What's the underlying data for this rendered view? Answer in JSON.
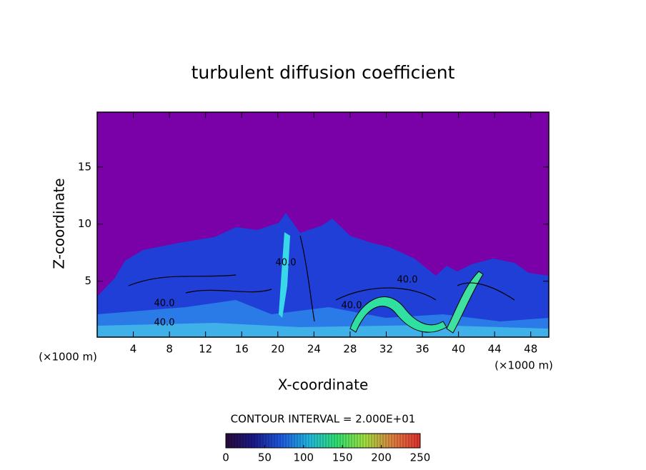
{
  "chart_data": {
    "type": "contour",
    "title": "turbulent diffusion coefficient",
    "xlabel": "X-coordinate",
    "ylabel": "Z-coordinate",
    "x_unit_label": "(×1000 m)",
    "y_unit_label": "(×1000 m)",
    "xlim": [
      0,
      50
    ],
    "ylim": [
      0.1,
      19.8
    ],
    "xticks": [
      4,
      8,
      12,
      16,
      20,
      24,
      28,
      32,
      36,
      40,
      44,
      48
    ],
    "yticks": [
      5,
      10,
      15
    ],
    "contour_interval_label": "CONTOUR INTERVAL = 2.000E+01",
    "contour_labels": [
      "40.0",
      "40.0",
      "40.0",
      "40.0",
      "40.0"
    ],
    "colorbar": {
      "lim": [
        0,
        250
      ],
      "ticks": [
        0,
        50,
        100,
        150,
        200,
        250
      ],
      "colors": [
        "#2a0a3a",
        "#1a1a8a",
        "#1e5ae0",
        "#20b8e0",
        "#30e070",
        "#a0e040",
        "#e08040",
        "#e03030"
      ]
    }
  }
}
